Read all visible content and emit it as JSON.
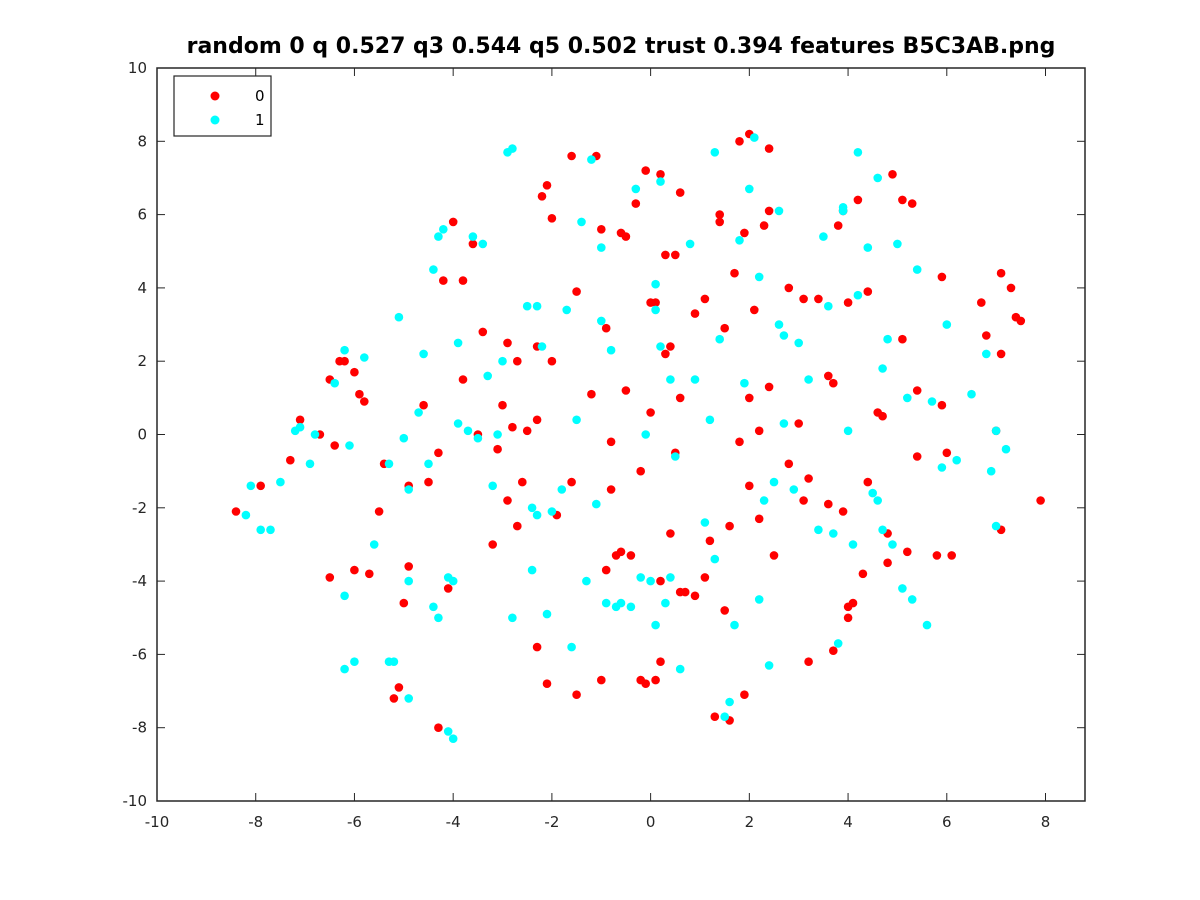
{
  "chart_data": {
    "type": "scatter",
    "title": "random 0 q 0.527 q3 0.544 q5 0.502 trust 0.394 features B5C3AB.png",
    "xlabel": "",
    "ylabel": "",
    "xlim": [
      -10,
      8.8
    ],
    "ylim": [
      -10,
      10
    ],
    "xticks": [
      -10,
      -8,
      -6,
      -4,
      -2,
      0,
      2,
      4,
      6,
      8
    ],
    "yticks": [
      -10,
      -8,
      -6,
      -4,
      -2,
      0,
      2,
      4,
      6,
      8,
      10
    ],
    "grid": false,
    "legend_position": "top-left",
    "series": [
      {
        "name": "0",
        "color": "#ff0000",
        "points": [
          [
            -8.4,
            -2.1
          ],
          [
            -7.9,
            -1.4
          ],
          [
            -7.3,
            -0.7
          ],
          [
            -7.1,
            0.4
          ],
          [
            -6.7,
            0.0
          ],
          [
            -6.5,
            1.5
          ],
          [
            -6.3,
            2.0
          ],
          [
            -6.0,
            1.7
          ],
          [
            -5.9,
            1.1
          ],
          [
            -5.8,
            0.9
          ],
          [
            -6.4,
            -0.3
          ],
          [
            -6.5,
            -3.9
          ],
          [
            -6.0,
            -3.7
          ],
          [
            -5.7,
            -3.8
          ],
          [
            -5.5,
            -2.1
          ],
          [
            -5.4,
            -0.8
          ],
          [
            -5.2,
            -7.2
          ],
          [
            -5.1,
            -6.9
          ],
          [
            -5.0,
            -4.6
          ],
          [
            -4.9,
            -3.6
          ],
          [
            -4.9,
            -1.4
          ],
          [
            -4.6,
            0.8
          ],
          [
            -4.5,
            -1.3
          ],
          [
            -4.3,
            -0.5
          ],
          [
            -4.2,
            4.2
          ],
          [
            -4.1,
            -4.2
          ],
          [
            -4.0,
            5.8
          ],
          [
            -4.3,
            -8.0
          ],
          [
            -3.8,
            1.5
          ],
          [
            -3.8,
            4.2
          ],
          [
            -3.6,
            5.2
          ],
          [
            -3.5,
            0.0
          ],
          [
            -3.4,
            2.8
          ],
          [
            -3.2,
            -3.0
          ],
          [
            -3.1,
            -0.4
          ],
          [
            -3.0,
            0.8
          ],
          [
            -2.9,
            2.5
          ],
          [
            -2.8,
            0.2
          ],
          [
            -2.7,
            -2.5
          ],
          [
            -2.9,
            -1.8
          ],
          [
            -2.6,
            -1.3
          ],
          [
            -2.7,
            2.0
          ],
          [
            -2.5,
            0.1
          ],
          [
            -2.3,
            2.4
          ],
          [
            -2.3,
            -5.8
          ],
          [
            -2.2,
            6.5
          ],
          [
            -2.1,
            6.8
          ],
          [
            -2.0,
            5.9
          ],
          [
            -2.1,
            -6.8
          ],
          [
            -2.0,
            2.0
          ],
          [
            -1.9,
            -2.2
          ],
          [
            -1.6,
            7.6
          ],
          [
            -1.5,
            3.9
          ],
          [
            -1.5,
            -7.1
          ],
          [
            -1.2,
            1.1
          ],
          [
            -1.1,
            7.6
          ],
          [
            -1.0,
            5.6
          ],
          [
            -1.0,
            -6.7
          ],
          [
            -0.9,
            -3.7
          ],
          [
            -0.9,
            2.9
          ],
          [
            -0.8,
            -1.5
          ],
          [
            -0.7,
            -3.3
          ],
          [
            -0.6,
            -3.2
          ],
          [
            -0.5,
            1.2
          ],
          [
            -0.4,
            -3.3
          ],
          [
            -0.5,
            5.4
          ],
          [
            -0.6,
            5.5
          ],
          [
            -0.3,
            6.3
          ],
          [
            -0.2,
            -1.0
          ],
          [
            -0.2,
            -6.7
          ],
          [
            -0.1,
            -6.8
          ],
          [
            -0.1,
            7.2
          ],
          [
            0.0,
            3.6
          ],
          [
            0.1,
            3.6
          ],
          [
            0.0,
            0.6
          ],
          [
            0.1,
            -6.7
          ],
          [
            0.2,
            -4.0
          ],
          [
            0.2,
            7.1
          ],
          [
            0.2,
            -6.2
          ],
          [
            0.3,
            4.9
          ],
          [
            0.3,
            2.2
          ],
          [
            0.4,
            2.4
          ],
          [
            0.4,
            -2.7
          ],
          [
            0.5,
            4.9
          ],
          [
            0.5,
            -0.5
          ],
          [
            0.6,
            6.6
          ],
          [
            0.6,
            -4.3
          ],
          [
            0.6,
            1.0
          ],
          [
            0.9,
            -4.4
          ],
          [
            0.9,
            3.3
          ],
          [
            1.1,
            -3.9
          ],
          [
            1.1,
            3.7
          ],
          [
            1.2,
            -2.9
          ],
          [
            1.3,
            -7.7
          ],
          [
            1.4,
            6.0
          ],
          [
            1.4,
            5.8
          ],
          [
            1.5,
            2.9
          ],
          [
            1.5,
            -4.8
          ],
          [
            1.6,
            -7.8
          ],
          [
            1.6,
            -2.5
          ],
          [
            1.7,
            4.4
          ],
          [
            1.8,
            -0.2
          ],
          [
            1.8,
            8.0
          ],
          [
            1.9,
            -7.1
          ],
          [
            2.0,
            1.0
          ],
          [
            2.0,
            8.2
          ],
          [
            2.0,
            -1.4
          ],
          [
            2.1,
            3.4
          ],
          [
            2.2,
            -2.3
          ],
          [
            2.2,
            0.1
          ],
          [
            2.3,
            5.7
          ],
          [
            2.4,
            7.8
          ],
          [
            2.4,
            6.1
          ],
          [
            2.4,
            1.3
          ],
          [
            2.5,
            -3.3
          ],
          [
            2.8,
            -0.8
          ],
          [
            2.8,
            4.0
          ],
          [
            3.0,
            0.3
          ],
          [
            3.1,
            3.7
          ],
          [
            3.1,
            -1.8
          ],
          [
            3.2,
            -1.2
          ],
          [
            3.2,
            -6.2
          ],
          [
            3.6,
            -1.9
          ],
          [
            3.6,
            1.6
          ],
          [
            3.7,
            1.4
          ],
          [
            3.7,
            -5.9
          ],
          [
            3.8,
            5.7
          ],
          [
            3.9,
            6.1
          ],
          [
            3.9,
            -2.1
          ],
          [
            4.0,
            -5.0
          ],
          [
            4.0,
            -4.7
          ],
          [
            4.0,
            3.6
          ],
          [
            4.1,
            -4.6
          ],
          [
            4.2,
            6.4
          ],
          [
            4.3,
            -3.8
          ],
          [
            4.4,
            3.9
          ],
          [
            4.4,
            -1.3
          ],
          [
            4.6,
            0.6
          ],
          [
            4.8,
            -3.5
          ],
          [
            4.8,
            -2.7
          ],
          [
            4.9,
            7.1
          ],
          [
            5.1,
            2.6
          ],
          [
            5.1,
            6.4
          ],
          [
            5.2,
            -3.2
          ],
          [
            5.3,
            6.3
          ],
          [
            5.4,
            1.2
          ],
          [
            5.4,
            -0.6
          ],
          [
            5.8,
            -3.3
          ],
          [
            5.9,
            4.3
          ],
          [
            5.9,
            0.8
          ],
          [
            6.0,
            -0.5
          ],
          [
            6.1,
            -3.3
          ],
          [
            6.7,
            3.6
          ],
          [
            6.8,
            2.7
          ],
          [
            7.1,
            4.4
          ],
          [
            7.1,
            2.2
          ],
          [
            7.1,
            -2.6
          ],
          [
            7.3,
            4.0
          ],
          [
            7.4,
            3.2
          ],
          [
            7.5,
            3.1
          ],
          [
            7.0,
            0.1
          ],
          [
            7.9,
            -1.8
          ],
          [
            -6.2,
            2.0
          ],
          [
            1.9,
            5.5
          ],
          [
            -1.6,
            -1.3
          ],
          [
            0.7,
            -4.3
          ],
          [
            -0.8,
            -0.2
          ],
          [
            -2.3,
            0.4
          ],
          [
            3.4,
            3.7
          ],
          [
            4.7,
            0.5
          ]
        ]
      },
      {
        "name": "1",
        "color": "#00ffff",
        "points": [
          [
            -8.2,
            -2.2
          ],
          [
            -8.1,
            -1.4
          ],
          [
            -7.9,
            -2.6
          ],
          [
            -7.7,
            -2.6
          ],
          [
            -7.5,
            -1.3
          ],
          [
            -7.2,
            0.1
          ],
          [
            -7.1,
            0.2
          ],
          [
            -6.9,
            -0.8
          ],
          [
            -6.4,
            1.4
          ],
          [
            -6.2,
            2.3
          ],
          [
            -6.1,
            -0.3
          ],
          [
            -6.2,
            -6.4
          ],
          [
            -6.0,
            -6.2
          ],
          [
            -6.2,
            -4.4
          ],
          [
            -5.8,
            2.1
          ],
          [
            -5.6,
            -3.0
          ],
          [
            -5.3,
            -0.8
          ],
          [
            -5.3,
            -6.2
          ],
          [
            -5.2,
            -6.2
          ],
          [
            -5.1,
            3.2
          ],
          [
            -5.0,
            -0.1
          ],
          [
            -4.9,
            -1.5
          ],
          [
            -4.9,
            -4.0
          ],
          [
            -4.9,
            -7.2
          ],
          [
            -4.7,
            0.6
          ],
          [
            -4.6,
            2.2
          ],
          [
            -4.5,
            -0.8
          ],
          [
            -4.4,
            -4.7
          ],
          [
            -4.3,
            -5.0
          ],
          [
            -4.4,
            4.5
          ],
          [
            -4.3,
            5.4
          ],
          [
            -4.2,
            5.6
          ],
          [
            -4.1,
            -3.9
          ],
          [
            -4.0,
            -4.0
          ],
          [
            -4.1,
            -8.1
          ],
          [
            -4.0,
            -8.3
          ],
          [
            -3.9,
            2.5
          ],
          [
            -3.9,
            0.3
          ],
          [
            -3.7,
            0.1
          ],
          [
            -3.6,
            5.4
          ],
          [
            -3.4,
            5.2
          ],
          [
            -3.5,
            -0.1
          ],
          [
            -3.3,
            1.6
          ],
          [
            -3.2,
            -1.4
          ],
          [
            -3.0,
            2.0
          ],
          [
            -2.9,
            7.7
          ],
          [
            -2.8,
            7.8
          ],
          [
            -2.8,
            -5.0
          ],
          [
            -2.5,
            3.5
          ],
          [
            -2.3,
            3.5
          ],
          [
            -2.4,
            -2.0
          ],
          [
            -2.3,
            -2.2
          ],
          [
            -2.2,
            2.4
          ],
          [
            -2.4,
            -3.7
          ],
          [
            -2.0,
            -2.1
          ],
          [
            -1.8,
            -1.5
          ],
          [
            -1.7,
            3.4
          ],
          [
            -1.6,
            -5.8
          ],
          [
            -1.5,
            0.4
          ],
          [
            -1.4,
            5.8
          ],
          [
            -1.3,
            -4.0
          ],
          [
            -1.2,
            7.5
          ],
          [
            -1.0,
            3.1
          ],
          [
            -1.0,
            5.1
          ],
          [
            -0.9,
            -4.6
          ],
          [
            -0.7,
            -4.7
          ],
          [
            -0.6,
            -4.6
          ],
          [
            -0.4,
            -4.7
          ],
          [
            -0.3,
            6.7
          ],
          [
            -0.2,
            -3.9
          ],
          [
            -0.1,
            0.0
          ],
          [
            0.0,
            -4.0
          ],
          [
            0.1,
            4.1
          ],
          [
            0.1,
            -5.2
          ],
          [
            0.2,
            6.9
          ],
          [
            0.2,
            2.4
          ],
          [
            0.3,
            -4.6
          ],
          [
            0.4,
            -3.9
          ],
          [
            0.5,
            -0.6
          ],
          [
            0.6,
            -6.4
          ],
          [
            0.8,
            5.2
          ],
          [
            0.9,
            1.5
          ],
          [
            1.1,
            -2.4
          ],
          [
            1.2,
            0.4
          ],
          [
            1.3,
            -3.4
          ],
          [
            1.3,
            7.7
          ],
          [
            1.4,
            2.6
          ],
          [
            1.5,
            -7.7
          ],
          [
            1.6,
            -7.3
          ],
          [
            1.7,
            -5.2
          ],
          [
            1.8,
            5.3
          ],
          [
            2.0,
            6.7
          ],
          [
            2.1,
            8.1
          ],
          [
            2.2,
            -4.5
          ],
          [
            2.2,
            4.3
          ],
          [
            2.3,
            -1.8
          ],
          [
            2.4,
            -6.3
          ],
          [
            2.5,
            -1.3
          ],
          [
            2.6,
            6.1
          ],
          [
            2.7,
            0.3
          ],
          [
            2.7,
            2.7
          ],
          [
            2.9,
            -1.5
          ],
          [
            3.0,
            2.5
          ],
          [
            3.2,
            1.5
          ],
          [
            3.4,
            -2.6
          ],
          [
            3.5,
            5.4
          ],
          [
            3.6,
            3.5
          ],
          [
            3.7,
            -2.7
          ],
          [
            3.9,
            6.2
          ],
          [
            3.9,
            6.1
          ],
          [
            4.0,
            0.1
          ],
          [
            4.1,
            -3.0
          ],
          [
            4.2,
            7.7
          ],
          [
            4.2,
            3.8
          ],
          [
            4.4,
            5.1
          ],
          [
            4.5,
            -1.6
          ],
          [
            4.6,
            7.0
          ],
          [
            4.7,
            1.8
          ],
          [
            4.7,
            -2.6
          ],
          [
            4.8,
            2.6
          ],
          [
            4.9,
            -3.0
          ],
          [
            5.0,
            5.2
          ],
          [
            5.1,
            -4.2
          ],
          [
            5.3,
            -4.5
          ],
          [
            5.4,
            4.5
          ],
          [
            5.6,
            -5.2
          ],
          [
            5.7,
            0.9
          ],
          [
            5.9,
            -0.9
          ],
          [
            6.2,
            -0.7
          ],
          [
            6.5,
            1.1
          ],
          [
            6.8,
            2.2
          ],
          [
            6.9,
            -1.0
          ],
          [
            7.0,
            -2.5
          ],
          [
            7.0,
            0.1
          ],
          [
            7.2,
            -0.4
          ],
          [
            0.1,
            3.4
          ],
          [
            -0.8,
            2.3
          ],
          [
            1.9,
            1.4
          ],
          [
            -2.1,
            -4.9
          ],
          [
            4.6,
            -1.8
          ],
          [
            -3.1,
            0.0
          ],
          [
            2.6,
            3.0
          ],
          [
            5.2,
            1.0
          ],
          [
            0.4,
            1.5
          ],
          [
            -1.1,
            -1.9
          ],
          [
            3.8,
            -5.7
          ],
          [
            -6.8,
            0.0
          ],
          [
            6.0,
            3.0
          ]
        ]
      }
    ]
  }
}
